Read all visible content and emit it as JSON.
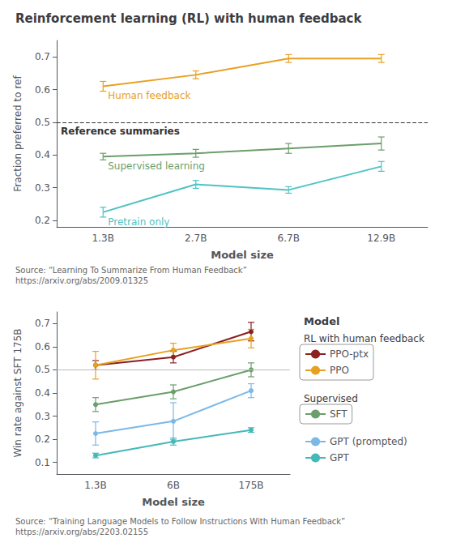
{
  "chart_data": [
    {
      "type": "line",
      "title": "Reinforcement learning (RL) with human feedback",
      "xlabel": "Model size",
      "ylabel": "Fraction preferred to ref",
      "categories": [
        "1.3B",
        "2.7B",
        "6.7B",
        "12.9B"
      ],
      "series": [
        {
          "name": "Human feedback",
          "color": "#E8A020",
          "values": [
            0.61,
            0.645,
            0.695,
            0.695
          ],
          "yerr": [
            0.015,
            0.012,
            0.012,
            0.012
          ]
        },
        {
          "name": "Supervised learning",
          "color": "#6B9E6B",
          "values": [
            0.395,
            0.405,
            0.42,
            0.435
          ],
          "yerr": [
            0.01,
            0.012,
            0.015,
            0.02
          ]
        },
        {
          "name": "Pretrain only",
          "color": "#4FC3C3",
          "values": [
            0.225,
            0.31,
            0.293,
            0.365
          ],
          "yerr": [
            0.015,
            0.012,
            0.01,
            0.015
          ]
        }
      ],
      "ylim": [
        0.18,
        0.75
      ],
      "yticks": [
        0.2,
        0.3,
        0.4,
        0.5,
        0.6,
        0.7
      ],
      "grid": false,
      "ref_line": {
        "value": 0.5,
        "label": "Reference summaries"
      },
      "source": "Source: “Learning To Summarize From Human Feedback”\nhttps://arxiv.org/abs/2009.01325"
    },
    {
      "type": "line",
      "xlabel": "Model size",
      "ylabel": "Win rate against SFT 175B",
      "categories": [
        "1.3B",
        "6B",
        "175B"
      ],
      "series": [
        {
          "name": "PPO-ptx",
          "color": "#8B2020",
          "values": [
            0.52,
            0.555,
            0.665
          ],
          "yerr": [
            0.02,
            0.025,
            0.04
          ]
        },
        {
          "name": "PPO",
          "color": "#E8A020",
          "values": [
            0.52,
            0.585,
            0.635
          ],
          "yerr": [
            0.06,
            0.03,
            0.04
          ]
        },
        {
          "name": "SFT",
          "color": "#6B9E6B",
          "values": [
            0.35,
            0.405,
            0.5
          ],
          "yerr": [
            0.03,
            0.03,
            0.03
          ]
        },
        {
          "name": "GPT (prompted)",
          "color": "#7BB8E8",
          "values": [
            0.225,
            0.278,
            0.41
          ],
          "yerr": [
            0.05,
            0.08,
            0.03
          ]
        },
        {
          "name": "GPT",
          "color": "#45B8B8",
          "values": [
            0.13,
            0.19,
            0.24
          ],
          "yerr": [
            0.01,
            0.015,
            0.01
          ]
        }
      ],
      "marker": "circle",
      "ylim": [
        0.05,
        0.75
      ],
      "yticks": [
        0.1,
        0.2,
        0.3,
        0.4,
        0.5,
        0.6,
        0.7
      ],
      "grid": false,
      "ref_line": {
        "value": 0.5
      },
      "legend": "right",
      "legend_title": "Model",
      "legend_groups": [
        {
          "label": "RL with human feedback",
          "series": [
            "PPO-ptx",
            "PPO"
          ]
        },
        {
          "label": "Supervised",
          "series": [
            "SFT"
          ]
        }
      ],
      "source": "Source: “Training Language Models to Follow Instructions With Human Feedback”\nhttps://arxiv.org/abs/2203.02155"
    }
  ]
}
